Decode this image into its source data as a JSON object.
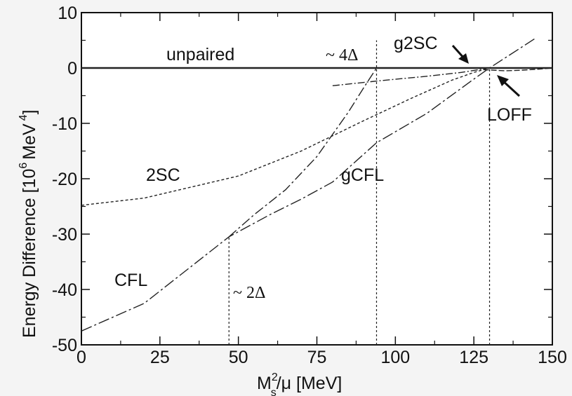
{
  "chart_data": {
    "type": "line",
    "xlabel": "M_s^2/μ [MeV]",
    "ylabel": "Energy Difference  [10^6 MeV^4]",
    "xlim": [
      0,
      150
    ],
    "ylim": [
      -50,
      10
    ],
    "xticks": [
      "0",
      "25",
      "50",
      "75",
      "100",
      "125",
      "150"
    ],
    "yticks": [
      "10",
      "0",
      "-10",
      "-20",
      "-30",
      "-40",
      "-50"
    ],
    "grid": false,
    "series": [
      {
        "name": "unpaired",
        "x": [
          0,
          150
        ],
        "y": [
          0,
          0
        ]
      },
      {
        "name": "CFL",
        "x": [
          0,
          20,
          47,
          60,
          70,
          80,
          94,
          110,
          125,
          130,
          145
        ],
        "y": [
          -47.5,
          -42.5,
          -30.5,
          -26.5,
          -23.7,
          -20.6,
          -13.5,
          -8.2,
          -2,
          0,
          5.5
        ]
      },
      {
        "name": "2SC",
        "x": [
          0,
          20,
          50,
          70,
          90,
          105,
          118,
          125,
          130
        ],
        "y": [
          -24.8,
          -23.5,
          -19.5,
          -15,
          -9.5,
          -5.5,
          -2.2,
          -0.8,
          0
        ]
      },
      {
        "name": "gCFL",
        "x": [
          47,
          55,
          65,
          75,
          85,
          90,
          94
        ],
        "y": [
          -30.5,
          -26.5,
          -22,
          -16,
          -8,
          -3.5,
          0
        ]
      },
      {
        "name": "g2SC",
        "x": [
          80,
          95,
          110,
          121,
          130
        ],
        "y": [
          -3.2,
          -2.3,
          -1.5,
          -0.8,
          0
        ]
      },
      {
        "name": "LOFF",
        "x": [
          128,
          135,
          140,
          146,
          150
        ],
        "y": [
          -0.3,
          -0.5,
          -0.4,
          -0.2,
          0
        ]
      }
    ],
    "vlines": [
      {
        "label": "~ 2Δ",
        "x": 47,
        "y_top": -30.5
      },
      {
        "label": "~ 4Δ",
        "x": 94,
        "y_top": 5
      },
      {
        "label": "",
        "x": 130,
        "y_top": 0
      }
    ],
    "annotations": {
      "unpaired": "unpaired",
      "g2sc": "g2SC",
      "loff": "LOFF",
      "two_sc": "2SC",
      "gcfl": "gCFL",
      "cfl": "CFL",
      "four_delta": "~ 4Δ",
      "two_delta": "~ 2Δ"
    },
    "ylabel_parts": {
      "main": "Energy Difference  [10",
      "sup1": "6",
      "unit": "MeV",
      "sup2": "4",
      "close": "]"
    },
    "xlabel_parts": {
      "m": "M",
      "sup": "2",
      "sub": "s",
      "rest": "/μ [MeV]"
    }
  }
}
